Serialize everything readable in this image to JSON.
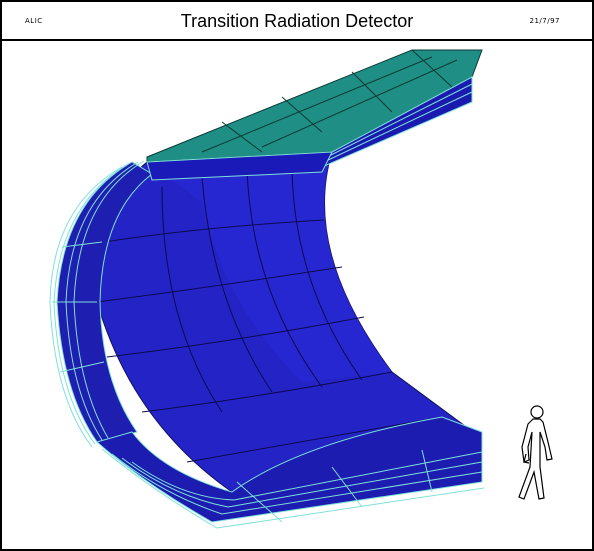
{
  "header": {
    "left_label": "ALIC",
    "title": "Transition Radiation Detector",
    "right_label": "21/7/97"
  },
  "colors": {
    "barrel_blue": "#2121c8",
    "barrel_blue_dark": "#1a1aa0",
    "top_teal": "#1e8c84",
    "edge_lines": "#6fd7d0",
    "figure": "#ffffff"
  },
  "icons": {
    "human_figure": "human-scale-figure-icon"
  }
}
